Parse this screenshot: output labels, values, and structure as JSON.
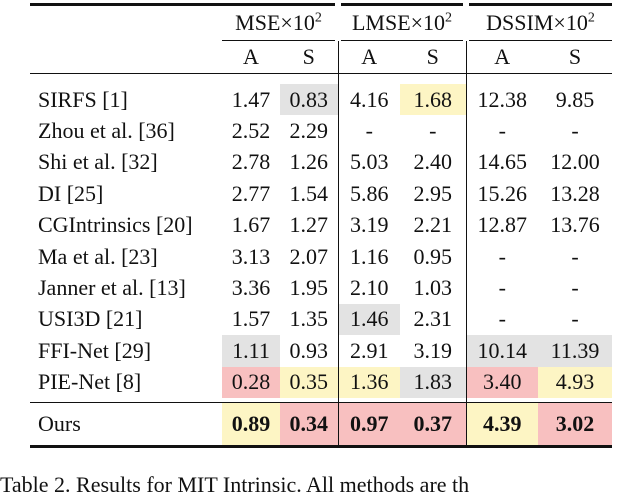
{
  "table": {
    "groups": [
      {
        "label": "MSE×10",
        "sup": "2"
      },
      {
        "label": "LMSE×10",
        "sup": "2"
      },
      {
        "label": "DSSIM×10",
        "sup": "2"
      }
    ],
    "subheaders": [
      "A",
      "S",
      "A",
      "S",
      "A",
      "S"
    ],
    "rows": [
      {
        "name": "SIRFS [1]",
        "cells": [
          "1.47",
          "0.83",
          "4.16",
          "1.68",
          "12.38",
          "9.85"
        ],
        "fills": [
          null,
          "#e3e3e3",
          null,
          "#fdf5c4",
          null,
          null
        ]
      },
      {
        "name": "Zhou et al. [36]",
        "cells": [
          "2.52",
          "2.29",
          "-",
          "-",
          "-",
          "-"
        ],
        "fills": [
          null,
          null,
          null,
          null,
          null,
          null
        ]
      },
      {
        "name": "Shi et al. [32]",
        "cells": [
          "2.78",
          "1.26",
          "5.03",
          "2.40",
          "14.65",
          "12.00"
        ],
        "fills": [
          null,
          null,
          null,
          null,
          null,
          null
        ]
      },
      {
        "name": "DI [25]",
        "cells": [
          "2.77",
          "1.54",
          "5.86",
          "2.95",
          "15.26",
          "13.28"
        ],
        "fills": [
          null,
          null,
          null,
          null,
          null,
          null
        ]
      },
      {
        "name": "CGIntrinsics [20]",
        "cells": [
          "1.67",
          "1.27",
          "3.19",
          "2.21",
          "12.87",
          "13.76"
        ],
        "fills": [
          null,
          null,
          null,
          null,
          null,
          null
        ]
      },
      {
        "name": "Ma et al. [23]",
        "cells": [
          "3.13",
          "2.07",
          "1.16",
          "0.95",
          "-",
          "-"
        ],
        "fills": [
          null,
          null,
          null,
          null,
          null,
          null
        ]
      },
      {
        "name": "Janner et al. [13]",
        "cells": [
          "3.36",
          "1.95",
          "2.10",
          "1.03",
          "-",
          "-"
        ],
        "fills": [
          null,
          null,
          null,
          null,
          null,
          null
        ]
      },
      {
        "name": "USI3D [21]",
        "cells": [
          "1.57",
          "1.35",
          "1.46",
          "2.31",
          "-",
          "-"
        ],
        "fills": [
          null,
          null,
          "#e3e3e3",
          null,
          null,
          null
        ]
      },
      {
        "name": "FFI-Net [29]",
        "cells": [
          "1.11",
          "0.93",
          "2.91",
          "3.19",
          "10.14",
          "11.39"
        ],
        "fills": [
          "#e3e3e3",
          null,
          null,
          null,
          "#e3e3e3",
          "#e3e3e3"
        ]
      },
      {
        "name": "PIE-Net [8]",
        "cells": [
          "0.28",
          "0.35",
          "1.36",
          "1.83",
          "3.40",
          "4.93"
        ],
        "fills": [
          "#f8c0c0",
          "#fdf5c4",
          "#fdf5c4",
          "#e3e3e3",
          "#f8c0c0",
          "#fdf5c4"
        ]
      }
    ],
    "final_row": {
      "name": "Ours",
      "cells": [
        "0.89",
        "0.34",
        "0.97",
        "0.37",
        "4.39",
        "3.02"
      ],
      "fills": [
        "#fdf5c4",
        "#f8c0c0",
        "#f8c0c0",
        "#f8c0c0",
        "#fdf5c4",
        "#f8c0c0"
      ],
      "bold": true
    },
    "caption": "Table 2. Results for MIT Intrinsic. All methods are th"
  }
}
